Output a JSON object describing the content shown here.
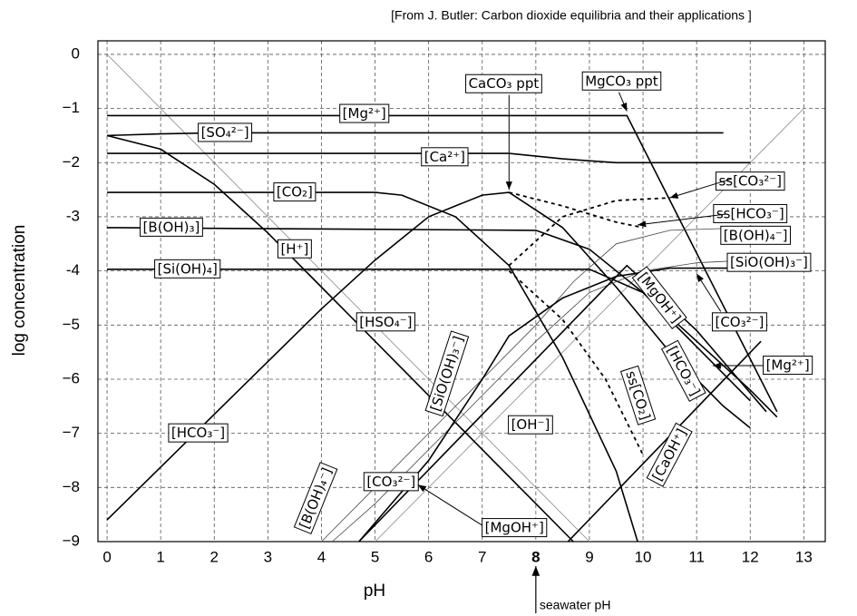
{
  "chart_data": {
    "type": "line",
    "source": "[From J. Butler: Carbon dioxide equilibria and their applications ]",
    "xlabel": "pH",
    "ylabel": "log concentration",
    "xlim": [
      -0.17,
      13.4
    ],
    "ylim": [
      -9,
      0.25
    ],
    "xticks": [
      0,
      1,
      2,
      3,
      4,
      5,
      6,
      7,
      8,
      9,
      10,
      11,
      12,
      13
    ],
    "bold_xtick": 8,
    "yticks": [
      0,
      {
        "value": -1,
        "label": "−1"
      },
      {
        "value": -2,
        "label": "−2"
      },
      -3,
      -4,
      {
        "value": -5,
        "label": "−5"
      },
      {
        "value": -6,
        "label": "−6"
      },
      {
        "value": -7,
        "label": "−7"
      },
      {
        "value": -8,
        "label": "−8"
      },
      {
        "value": -9,
        "label": "−9"
      }
    ],
    "grid": true,
    "marker": "seawater pH",
    "series": [
      {
        "name": "[H⁺]",
        "style": "thin",
        "color": "#888888",
        "x": [
          0,
          9
        ],
        "values": [
          0,
          -9
        ]
      },
      {
        "name": "[OH⁻]",
        "style": "thin",
        "color": "#888888",
        "x": [
          5,
          13
        ],
        "values": [
          -9,
          -1
        ]
      },
      {
        "name": "[Mg²⁺]",
        "style": "thick",
        "color": "#000000",
        "x": [
          0,
          9.7,
          12.5
        ],
        "values": [
          -1.13,
          -1.13,
          -6.6
        ]
      },
      {
        "name": "[SO₄²⁻]",
        "style": "thick",
        "color": "#000000",
        "x": [
          0,
          1,
          2,
          11.5
        ],
        "values": [
          -1.5,
          -1.47,
          -1.45,
          -1.45
        ]
      },
      {
        "name": "[HSO₄⁻]",
        "style": "thick",
        "color": "#000000",
        "x": [
          0,
          1,
          2,
          3,
          4,
          5,
          6,
          7,
          8,
          8.7
        ],
        "values": [
          -1.5,
          -1.75,
          -2.4,
          -3.3,
          -4.3,
          -5.3,
          -6.3,
          -7.3,
          -8.3,
          -9
        ]
      },
      {
        "name": "[Ca²⁺]",
        "style": "thick",
        "color": "#000000",
        "x": [
          0,
          7.5,
          8.5,
          9.5,
          12
        ],
        "values": [
          -1.83,
          -1.83,
          -1.93,
          -2.0,
          -2.0
        ]
      },
      {
        "name": "[CO₂]",
        "style": "thick",
        "color": "#000000",
        "x": [
          0,
          5,
          5.5,
          6.5,
          7.5,
          8.5,
          9.5,
          9.9
        ],
        "values": [
          -2.55,
          -2.55,
          -2.6,
          -3.0,
          -3.9,
          -5.6,
          -7.7,
          -9
        ]
      },
      {
        "name": "[HCO₃⁻]",
        "style": "thick",
        "color": "#000000",
        "x": [
          0,
          4,
          5,
          6,
          7,
          7.5,
          8.5,
          9.5,
          10.5,
          11.5,
          12
        ],
        "values": [
          -8.6,
          -4.7,
          -3.8,
          -3.0,
          -2.6,
          -2.55,
          -3.2,
          -4.3,
          -5.5,
          -6.5,
          -6.9
        ]
      },
      {
        "name": "[B(OH)₃]",
        "style": "thick",
        "color": "#000000",
        "x": [
          0,
          8,
          9,
          10,
          11,
          12
        ],
        "values": [
          -3.2,
          -3.25,
          -3.6,
          -4.4,
          -5.4,
          -6.4
        ]
      },
      {
        "name": "[B(OH)₄⁻]",
        "style": "thin",
        "color": "#444444",
        "x": [
          4,
          5,
          6,
          7,
          8,
          8.7,
          9.5,
          10.5,
          12
        ],
        "values": [
          -9,
          -8,
          -7,
          -6,
          -5,
          -4.2,
          -3.5,
          -3.25,
          -3.2
        ]
      },
      {
        "name": "[Si(OH)₄]",
        "style": "thick",
        "color": "#000000",
        "x": [
          0,
          9,
          10,
          11,
          12,
          12.5
        ],
        "values": [
          -3.97,
          -3.97,
          -4.4,
          -5.3,
          -6.2,
          -6.7
        ]
      },
      {
        "name": "[SiO(OH)₃⁻]",
        "style": "thin",
        "color": "#444444",
        "x": [
          4.2,
          5,
          6,
          7,
          8,
          9,
          10,
          11,
          12
        ],
        "values": [
          -9,
          -8.3,
          -7.3,
          -6.3,
          -5.3,
          -4.4,
          -4.0,
          -3.85,
          -3.8
        ]
      },
      {
        "name": "[CO₃²⁻]",
        "style": "thick",
        "color": "#000000",
        "x": [
          4.7,
          6,
          7,
          7.5,
          8.5,
          9.5,
          10.5,
          12
        ],
        "values": [
          -9,
          -7.5,
          -6.0,
          -5.2,
          -4.5,
          -4.1,
          -3.95,
          -3.95
        ]
      },
      {
        "name": "[MgOH⁺]",
        "style": "thick",
        "color": "#000000",
        "x": [
          4.7,
          9.7,
          11,
          12.3
        ],
        "values": [
          -9,
          -3.9,
          -5.1,
          -6.6
        ]
      },
      {
        "name": "[CaOH⁺]",
        "style": "thick",
        "color": "#000000",
        "x": [
          8.6,
          12.2
        ],
        "values": [
          -9,
          -5.3
        ]
      },
      {
        "name": "ss[CO₂]",
        "style": "dashed",
        "color": "#000000",
        "x": [
          7.5,
          8.5,
          9.3,
          10
        ],
        "values": [
          -4.0,
          -4.9,
          -6.0,
          -7.4
        ]
      },
      {
        "name": "ss[HCO₃⁻]",
        "style": "dashed",
        "color": "#000000",
        "x": [
          7.5,
          8.5,
          9.5,
          10
        ],
        "values": [
          -2.55,
          -2.8,
          -3.1,
          -3.2
        ]
      },
      {
        "name": "ss[CO₃²⁻]",
        "style": "dashed",
        "color": "#000000",
        "x": [
          7.5,
          8.5,
          9.5,
          10.5
        ],
        "values": [
          -3.9,
          -3.0,
          -2.7,
          -2.65
        ]
      }
    ],
    "annotations": [
      "CaCO₃ ppt",
      "MgCO₃ ppt",
      "[B(OH)₄⁻]",
      "[SiO(OH)₃⁻]",
      "[CO₃²⁻]",
      "[Mg²⁺]",
      "[HCO₃⁻]",
      "[MgOH⁺]"
    ]
  }
}
